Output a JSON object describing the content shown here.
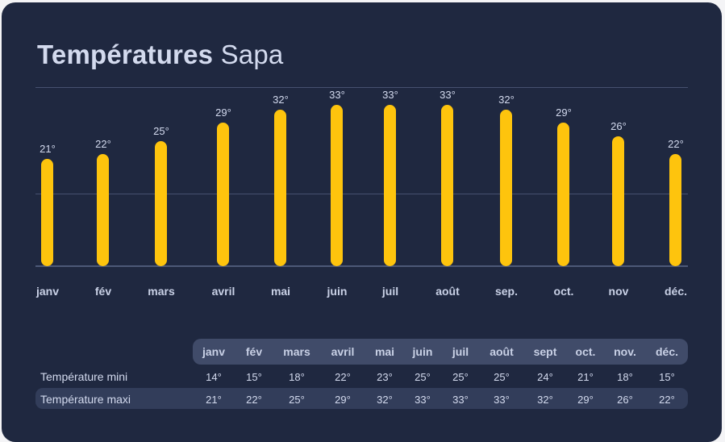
{
  "title": {
    "bold": "Températures",
    "light": "Sapa"
  },
  "colors": {
    "background": "#1f2840",
    "bar": "#fec40d",
    "header_row": "#404b69",
    "maxi_row": "#323d5a",
    "text": "#d3daee"
  },
  "chart_data": {
    "type": "bar",
    "title": "Températures Sapa",
    "xlabel": "",
    "ylabel": "",
    "categories": [
      "janv",
      "fév",
      "mars",
      "avril",
      "mai",
      "juin",
      "juil",
      "août",
      "sep.",
      "oct.",
      "nov",
      "déc."
    ],
    "series": [
      {
        "name": "Température maxi",
        "values": [
          21,
          22,
          25,
          29,
          32,
          33,
          33,
          33,
          32,
          29,
          26,
          22
        ]
      }
    ],
    "value_labels": [
      "21°",
      "22°",
      "25°",
      "29°",
      "32°",
      "33°",
      "33°",
      "33°",
      "32°",
      "29°",
      "26°",
      "22°"
    ],
    "grid": true,
    "legend": "none"
  },
  "table": {
    "headers": [
      "janv",
      "fév",
      "mars",
      "avril",
      "mai",
      "juin",
      "juil",
      "août",
      "sept",
      "oct.",
      "nov.",
      "déc."
    ],
    "rows": [
      {
        "label": "Température mini",
        "values": [
          "14°",
          "15°",
          "18°",
          "22°",
          "23°",
          "25°",
          "25°",
          "25°",
          "24°",
          "21°",
          "18°",
          "15°"
        ]
      },
      {
        "label": "Température maxi",
        "values": [
          "21°",
          "22°",
          "25°",
          "29°",
          "32°",
          "33°",
          "33°",
          "33°",
          "32°",
          "29°",
          "26°",
          "22°"
        ]
      }
    ]
  }
}
